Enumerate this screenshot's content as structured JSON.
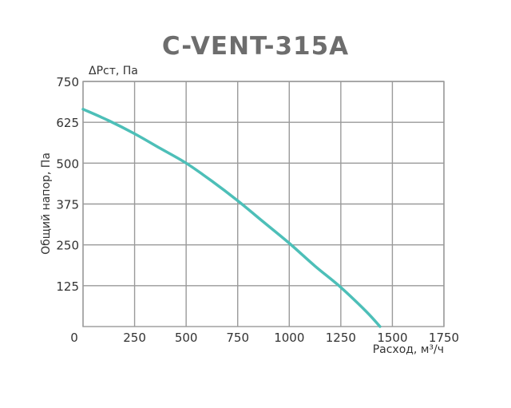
{
  "chart_data": {
    "type": "line",
    "title": "C-VENT-315A",
    "xlabel": "Расход, м³/ч",
    "ylabel": "Общий напор, Па",
    "y_unit_label": "ΔРст, Па",
    "xlim": [
      0,
      1750
    ],
    "ylim": [
      0,
      750
    ],
    "x_ticks": [
      "0",
      "250",
      "500",
      "750",
      "1000",
      "1250",
      "1500",
      "1750"
    ],
    "y_ticks": [
      "0",
      "125",
      "250",
      "375",
      "500",
      "625",
      "750"
    ],
    "grid": true,
    "series": [
      {
        "color": "#4dbfb8",
        "x": [
          0,
          125,
          250,
          375,
          500,
          625,
          750,
          875,
          1000,
          1125,
          1250,
          1375,
          1440
        ],
        "y": [
          665,
          630,
          590,
          545,
          500,
          445,
          385,
          320,
          255,
          185,
          120,
          45,
          0
        ]
      }
    ]
  }
}
